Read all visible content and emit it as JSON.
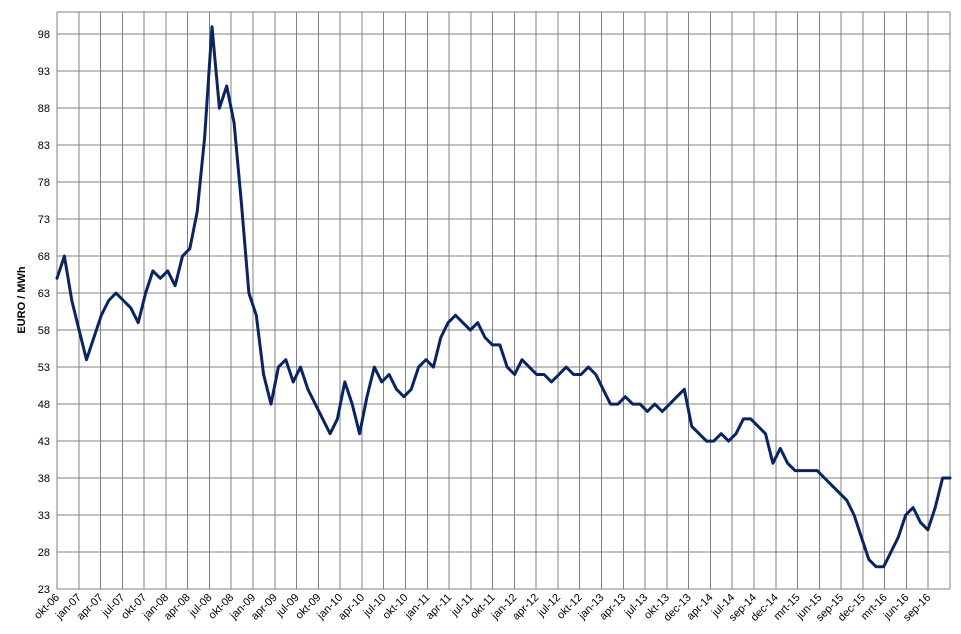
{
  "chart_data": {
    "type": "line",
    "title": "",
    "xlabel": "",
    "ylabel": "EURO / MWh",
    "ylim": [
      23,
      101
    ],
    "yticks": [
      23,
      28,
      33,
      38,
      43,
      48,
      53,
      58,
      63,
      68,
      73,
      78,
      83,
      88,
      93,
      98
    ],
    "xticks": [
      "okt-06",
      "jan-07",
      "apr-07",
      "jul-07",
      "okt-07",
      "jan-08",
      "apr-08",
      "jul-08",
      "okt-08",
      "jan-09",
      "apr-09",
      "jul-09",
      "okt-09",
      "jan-10",
      "apr-10",
      "jul-10",
      "okt-10",
      "jan-11",
      "apr-11",
      "jul-11",
      "okt-11",
      "jan-12",
      "apr-12",
      "jul-12",
      "okt-12",
      "jan-13",
      "apr-13",
      "jul-13",
      "okt-13",
      "dec-13",
      "apr-14",
      "jul-14",
      "sep-14",
      "dec-14",
      "mrt-15",
      "jun-15",
      "sep-15",
      "dec-15",
      "mrt-16",
      "jun-16",
      "sep-16"
    ],
    "grid": true,
    "legend": "none",
    "colors": {
      "series": "#0a2463",
      "grid": "#808080",
      "background": "#ffffff"
    },
    "series": [
      {
        "x": [
          "2006-10",
          "2006-11",
          "2006-12",
          "2007-01",
          "2007-02",
          "2007-03",
          "2007-04",
          "2007-05",
          "2007-06",
          "2007-07",
          "2007-08",
          "2007-09",
          "2007-10",
          "2007-11",
          "2007-12",
          "2008-01",
          "2008-02",
          "2008-03",
          "2008-04",
          "2008-05",
          "2008-06",
          "2008-07",
          "2008-08",
          "2008-09",
          "2008-10",
          "2008-11",
          "2008-12",
          "2009-01",
          "2009-02",
          "2009-03",
          "2009-04",
          "2009-05",
          "2009-06",
          "2009-07",
          "2009-08",
          "2009-09",
          "2009-10",
          "2009-11",
          "2009-12",
          "2010-01",
          "2010-02",
          "2010-03",
          "2010-04",
          "2010-05",
          "2010-06",
          "2010-07",
          "2010-08",
          "2010-09",
          "2010-10",
          "2010-11",
          "2010-12",
          "2011-01",
          "2011-02",
          "2011-03",
          "2011-04",
          "2011-05",
          "2011-06",
          "2011-07",
          "2011-08",
          "2011-09",
          "2011-10",
          "2011-11",
          "2011-12",
          "2012-01",
          "2012-02",
          "2012-03",
          "2012-04",
          "2012-05",
          "2012-06",
          "2012-07",
          "2012-08",
          "2012-09",
          "2012-10",
          "2012-11",
          "2012-12",
          "2013-01",
          "2013-02",
          "2013-03",
          "2013-04",
          "2013-05",
          "2013-06",
          "2013-07",
          "2013-08",
          "2013-09",
          "2013-10",
          "2013-11",
          "2013-12",
          "2014-01",
          "2014-02",
          "2014-03",
          "2014-04",
          "2014-05",
          "2014-06",
          "2014-07",
          "2014-08",
          "2014-09",
          "2014-10",
          "2014-11",
          "2014-12",
          "2015-01",
          "2015-02",
          "2015-03",
          "2015-04",
          "2015-05",
          "2015-06",
          "2015-07",
          "2015-08",
          "2015-09",
          "2015-10",
          "2015-11",
          "2015-12",
          "2016-01",
          "2016-02",
          "2016-03",
          "2016-04",
          "2016-05",
          "2016-06",
          "2016-07",
          "2016-08",
          "2016-09",
          "2016-10",
          "2016-11"
        ],
        "values": [
          65,
          68,
          62,
          58,
          54,
          57,
          60,
          62,
          63,
          62,
          61,
          59,
          63,
          66,
          65,
          66,
          64,
          68,
          69,
          74,
          84,
          99,
          88,
          91,
          86,
          75,
          63,
          60,
          52,
          48,
          53,
          54,
          51,
          53,
          50,
          48,
          46,
          44,
          46,
          51,
          48,
          44,
          49,
          53,
          51,
          52,
          50,
          49,
          50,
          53,
          54,
          53,
          57,
          59,
          60,
          59,
          58,
          59,
          57,
          56,
          56,
          53,
          52,
          54,
          53,
          52,
          52,
          51,
          52,
          53,
          52,
          52,
          53,
          52,
          50,
          48,
          48,
          49,
          48,
          48,
          47,
          48,
          47,
          48,
          49,
          50,
          45,
          44,
          43,
          43,
          44,
          43,
          44,
          46,
          46,
          45,
          44,
          40,
          42,
          40,
          39,
          39,
          39,
          39,
          38,
          37,
          36,
          35,
          33,
          30,
          27,
          26,
          26,
          28,
          30,
          33,
          34,
          32,
          31,
          34,
          38,
          38
        ]
      }
    ]
  }
}
